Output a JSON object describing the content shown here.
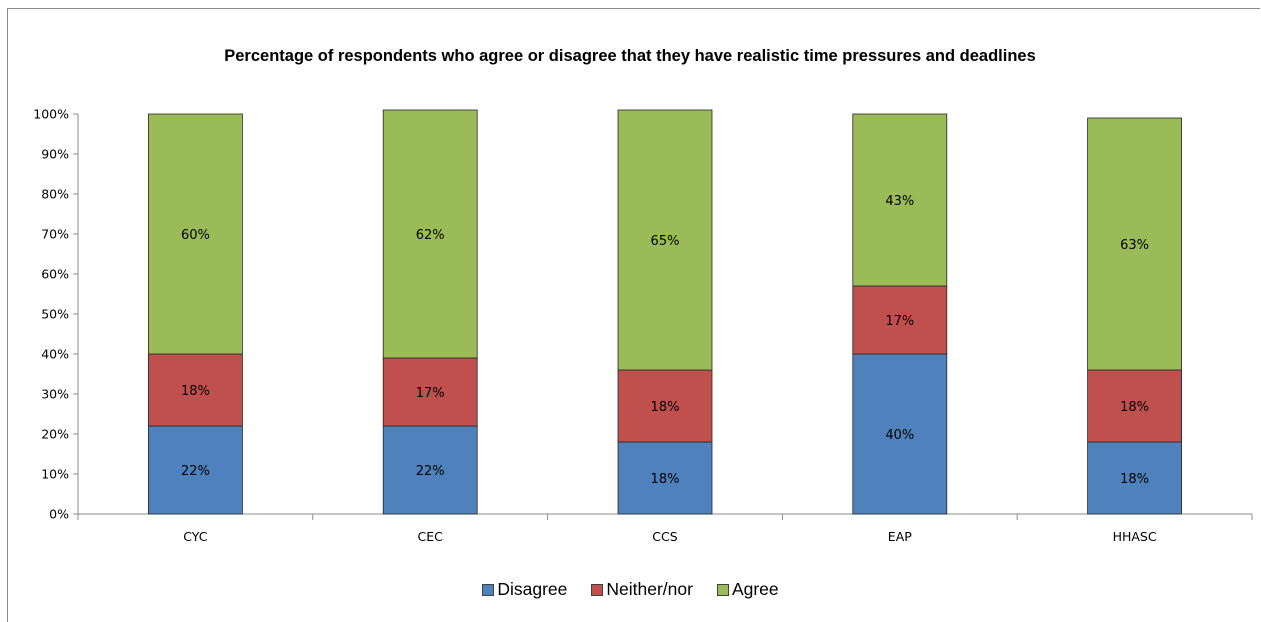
{
  "chart_data": {
    "type": "bar",
    "stacked": true,
    "normalized": true,
    "title": "Percentage of respondents who agree or disagree that they have realistic time pressures and deadlines",
    "xlabel": "",
    "ylabel": "",
    "categories": [
      "CYC",
      "CEC",
      "CCS",
      "EAP",
      "HHASC"
    ],
    "series": [
      {
        "name": "Disagree",
        "color": "#4f81bd",
        "values": [
          22,
          22,
          18,
          40,
          18
        ],
        "labels": [
          "22%",
          "22%",
          "18%",
          "40%",
          "18%"
        ]
      },
      {
        "name": "Neither/nor",
        "color": "#c0504d",
        "values": [
          18,
          17,
          18,
          17,
          18
        ],
        "labels": [
          "18%",
          "17%",
          "18%",
          "17%",
          "18%"
        ]
      },
      {
        "name": "Agree",
        "color": "#9bbb59",
        "values": [
          60,
          62,
          65,
          43,
          63
        ],
        "labels": [
          "60%",
          "62%",
          "65%",
          "43%",
          "63%"
        ]
      }
    ],
    "ylim": [
      0,
      100
    ],
    "yticks": [
      "0%",
      "10%",
      "20%",
      "30%",
      "40%",
      "50%",
      "60%",
      "70%",
      "80%",
      "90%",
      "100%"
    ],
    "grid": false,
    "legend_position": "bottom"
  }
}
